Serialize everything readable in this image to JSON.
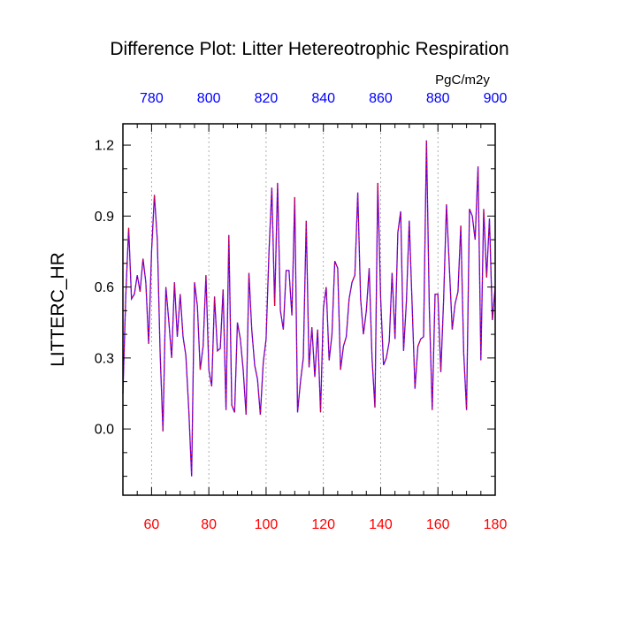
{
  "chart_data": {
    "type": "line",
    "title": "Difference Plot: Litter Hetereotrophic Respiration",
    "units": "PgC/m2y",
    "ylabel": "LITTERC_HR",
    "xlabel": "",
    "x_range": [
      50,
      180
    ],
    "ylim": [
      -0.28,
      1.29
    ],
    "x_ticks": [
      "60",
      "80",
      "100",
      "120",
      "140",
      "160",
      "180"
    ],
    "x_tick_values": [
      60,
      80,
      100,
      120,
      140,
      160,
      180
    ],
    "top_ticks": [
      "780",
      "800",
      "820",
      "840",
      "860",
      "880",
      "900"
    ],
    "y_ticks": [
      "0.0",
      "0.3",
      "0.6",
      "0.9",
      "1.2"
    ],
    "y_tick_values": [
      0,
      0.3,
      0.6,
      0.9,
      1.2
    ],
    "grid": "vertical-dashed",
    "colors": {
      "series": "#4a00ff",
      "series_overlay": "#ff0000",
      "bottom_ticks": "#ff0000",
      "top_ticks": "#0000ff",
      "grid": "#999999"
    },
    "series": [
      {
        "x": [
          50,
          51,
          52,
          53,
          54,
          55,
          56,
          57,
          58,
          59,
          60,
          61,
          62,
          63,
          64,
          65,
          66,
          67,
          68,
          69,
          70,
          71,
          72,
          73,
          74,
          75,
          76,
          77,
          78,
          79,
          80,
          81,
          82,
          83,
          84,
          85,
          86,
          87,
          88,
          89,
          90,
          91,
          92,
          93,
          94,
          95,
          96,
          97,
          98,
          99,
          100,
          101,
          102,
          103,
          104,
          105,
          106,
          107,
          108,
          109,
          110,
          111,
          112,
          113,
          114,
          115,
          116,
          117,
          118,
          119,
          120,
          121,
          122,
          123,
          124,
          125,
          126,
          127,
          128,
          129,
          130,
          131,
          132,
          133,
          134,
          135,
          136,
          137,
          138,
          139,
          140,
          141,
          142,
          143,
          144,
          145,
          146,
          147,
          148,
          149,
          150,
          151,
          152,
          153,
          154,
          155,
          156,
          157,
          158,
          159,
          160,
          161,
          162,
          163,
          164,
          165,
          166,
          167,
          168,
          169,
          170,
          171,
          172,
          173,
          174,
          175,
          176,
          177,
          178,
          179,
          180
        ],
        "values": [
          0.15,
          0.56,
          0.85,
          0.55,
          0.57,
          0.65,
          0.58,
          0.72,
          0.62,
          0.36,
          0.75,
          0.99,
          0.8,
          0.32,
          -0.01,
          0.6,
          0.46,
          0.3,
          0.62,
          0.39,
          0.57,
          0.39,
          0.31,
          0.08,
          -0.2,
          0.62,
          0.52,
          0.25,
          0.35,
          0.65,
          0.25,
          0.18,
          0.56,
          0.33,
          0.34,
          0.59,
          0.08,
          0.82,
          0.1,
          0.07,
          0.45,
          0.38,
          0.25,
          0.06,
          0.66,
          0.42,
          0.27,
          0.21,
          0.06,
          0.28,
          0.38,
          0.75,
          1.02,
          0.52,
          1.04,
          0.5,
          0.42,
          0.67,
          0.67,
          0.48,
          0.98,
          0.07,
          0.2,
          0.3,
          0.88,
          0.26,
          0.43,
          0.22,
          0.42,
          0.07,
          0.51,
          0.6,
          0.29,
          0.4,
          0.71,
          0.68,
          0.25,
          0.35,
          0.39,
          0.55,
          0.62,
          0.65,
          1.0,
          0.55,
          0.4,
          0.5,
          0.68,
          0.3,
          0.09,
          1.04,
          0.55,
          0.27,
          0.3,
          0.37,
          0.66,
          0.38,
          0.83,
          0.92,
          0.33,
          0.54,
          0.88,
          0.52,
          0.17,
          0.35,
          0.38,
          0.39,
          1.22,
          0.51,
          0.08,
          0.57,
          0.57,
          0.24,
          0.55,
          0.95,
          0.68,
          0.42,
          0.53,
          0.58,
          0.86,
          0.32,
          0.08,
          0.93,
          0.9,
          0.8,
          1.11,
          0.29,
          0.93,
          0.64,
          0.89,
          0.46,
          0.6
        ]
      }
    ]
  }
}
